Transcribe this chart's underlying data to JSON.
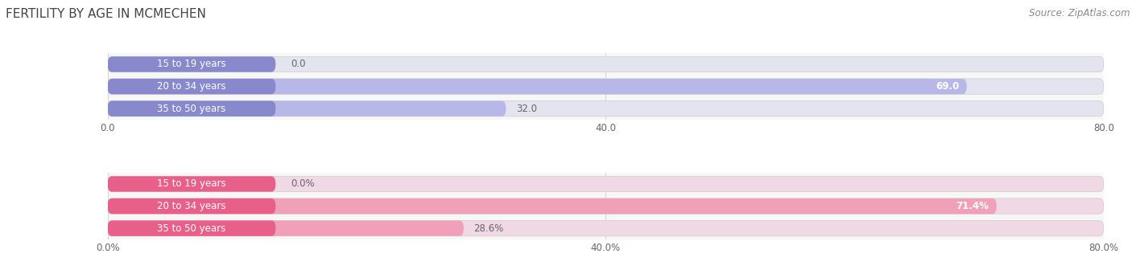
{
  "title": "FERTILITY BY AGE IN MCMECHEN",
  "source": "Source: ZipAtlas.com",
  "top_chart": {
    "categories": [
      "15 to 19 years",
      "20 to 34 years",
      "35 to 50 years"
    ],
    "values": [
      0.0,
      69.0,
      32.0
    ],
    "bar_color": "#8888cc",
    "bar_color_light": "#b8b8e8",
    "bg_color": "#e4e4f0",
    "xlim": [
      0,
      80
    ],
    "xticks": [
      0.0,
      40.0,
      80.0
    ],
    "xticklabels": [
      "0.0",
      "40.0",
      "80.0"
    ]
  },
  "bottom_chart": {
    "categories": [
      "15 to 19 years",
      "20 to 34 years",
      "35 to 50 years"
    ],
    "values": [
      0.0,
      71.4,
      28.6
    ],
    "bar_color": "#e8608a",
    "bar_color_light": "#f0a0b8",
    "bg_color": "#f0d8e4",
    "xlim": [
      0,
      80
    ],
    "xticks": [
      0.0,
      40.0,
      80.0
    ],
    "xticklabels": [
      "0.0%",
      "40.0%",
      "80.0%"
    ]
  },
  "title_fontsize": 11,
  "source_fontsize": 8.5,
  "label_fontsize": 8.5,
  "tick_fontsize": 8.5,
  "value_fontsize": 8.5,
  "bar_height": 0.7,
  "label_color": "#666666",
  "title_color": "#444444",
  "source_color": "#888888",
  "fig_bg_color": "#ffffff",
  "chart_bg_color": "#f7f7f7"
}
